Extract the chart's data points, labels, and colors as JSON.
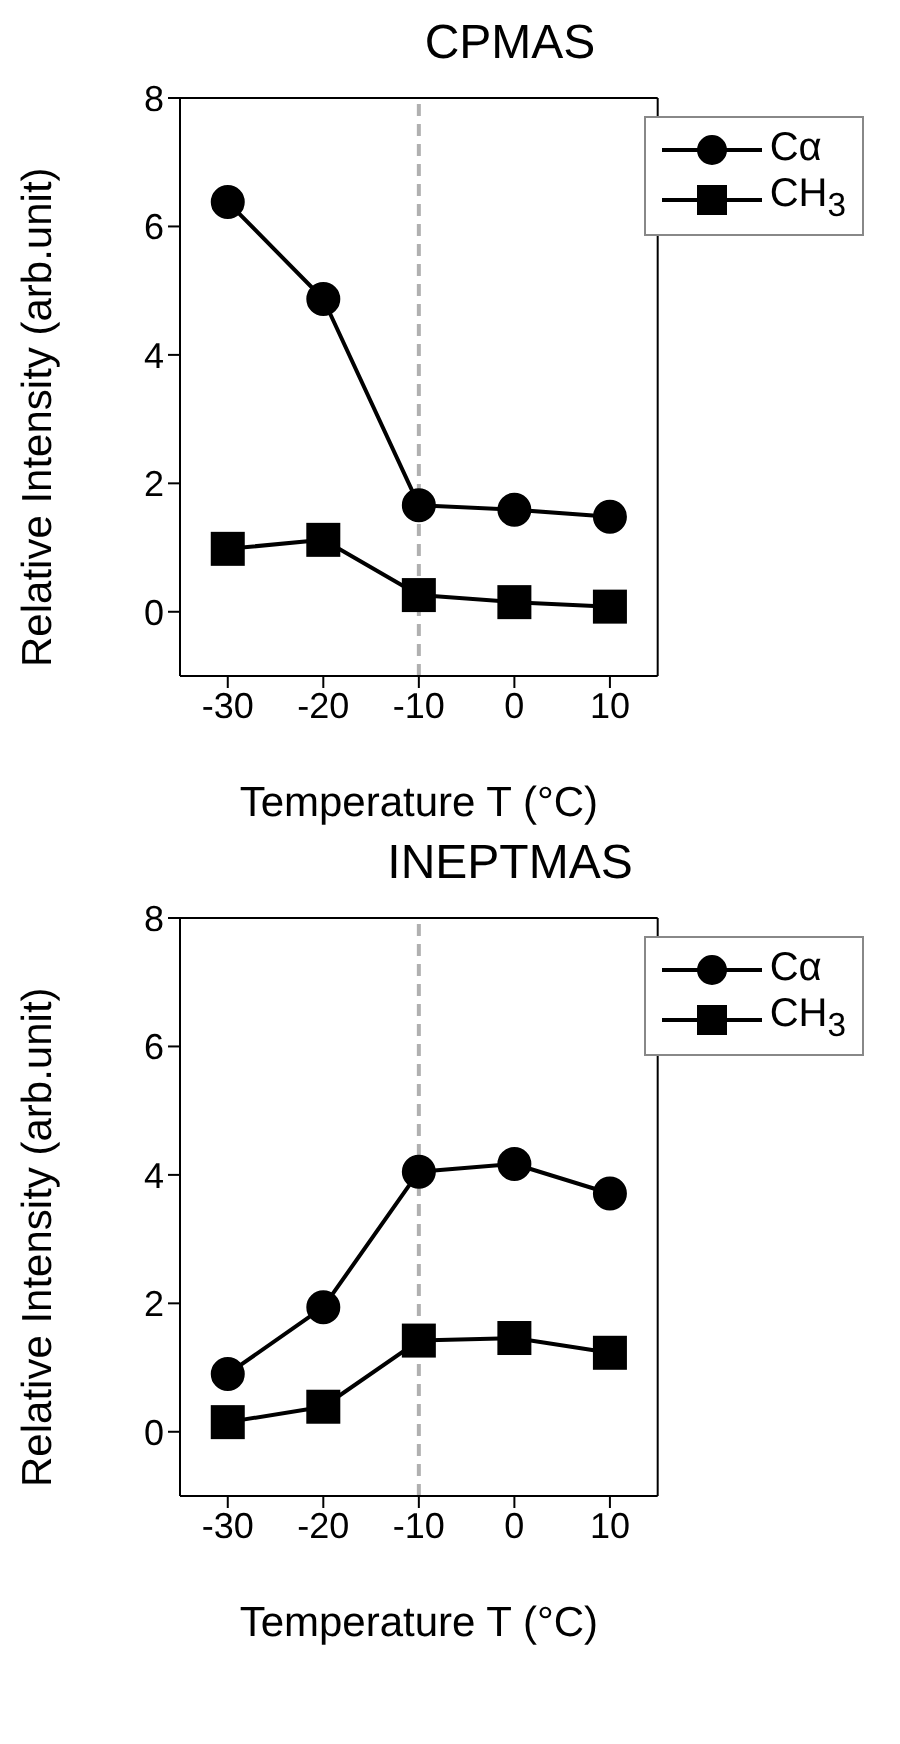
{
  "chart_data": [
    {
      "type": "line",
      "title": "CPMAS",
      "xlabel": "Temperature T (°C)",
      "ylabel": "Relative Intensity (arb.unit)",
      "x": [
        -30,
        -20,
        -10,
        0,
        10
      ],
      "xlim": [
        -35,
        15
      ],
      "xticks": [
        -30,
        -20,
        -10,
        0,
        10
      ],
      "ylim": [
        -1,
        8
      ],
      "yticks": [
        0,
        2,
        4,
        6,
        8
      ],
      "grid": false,
      "legend": "top right",
      "line_style": "solid",
      "ref_lines": [
        {
          "axis": "x",
          "value": -10,
          "color": "#b0b0b0",
          "line_style": "dashed"
        }
      ],
      "series": [
        {
          "name": "Cα",
          "color": "#000000",
          "marker": "circle",
          "values": [
            6.38,
            4.87,
            1.66,
            1.59,
            1.48
          ]
        },
        {
          "name": "CH$_{3}$",
          "color": "#000000",
          "marker": "square",
          "values": [
            0.98,
            1.12,
            0.26,
            0.15,
            0.08
          ]
        }
      ]
    },
    {
      "type": "line",
      "title": "INEPTMAS",
      "xlabel": "Temperature T (°C)",
      "ylabel": "Relative Intensity (arb.unit)",
      "x": [
        -30,
        -20,
        -10,
        0,
        10
      ],
      "xlim": [
        -35,
        15
      ],
      "xticks": [
        -30,
        -20,
        -10,
        0,
        10
      ],
      "ylim": [
        -1,
        8
      ],
      "yticks": [
        0,
        2,
        4,
        6,
        8
      ],
      "grid": false,
      "legend": "top right",
      "line_style": "solid",
      "ref_lines": [
        {
          "axis": "x",
          "value": -10,
          "color": "#b0b0b0",
          "line_style": "dashed"
        }
      ],
      "series": [
        {
          "name": "Cα",
          "color": "#000000",
          "marker": "circle",
          "values": [
            0.9,
            1.94,
            4.05,
            4.17,
            3.71
          ]
        },
        {
          "name": "CH$_{3}$",
          "color": "#000000",
          "marker": "square",
          "values": [
            0.15,
            0.39,
            1.42,
            1.46,
            1.23
          ]
        }
      ]
    }
  ]
}
